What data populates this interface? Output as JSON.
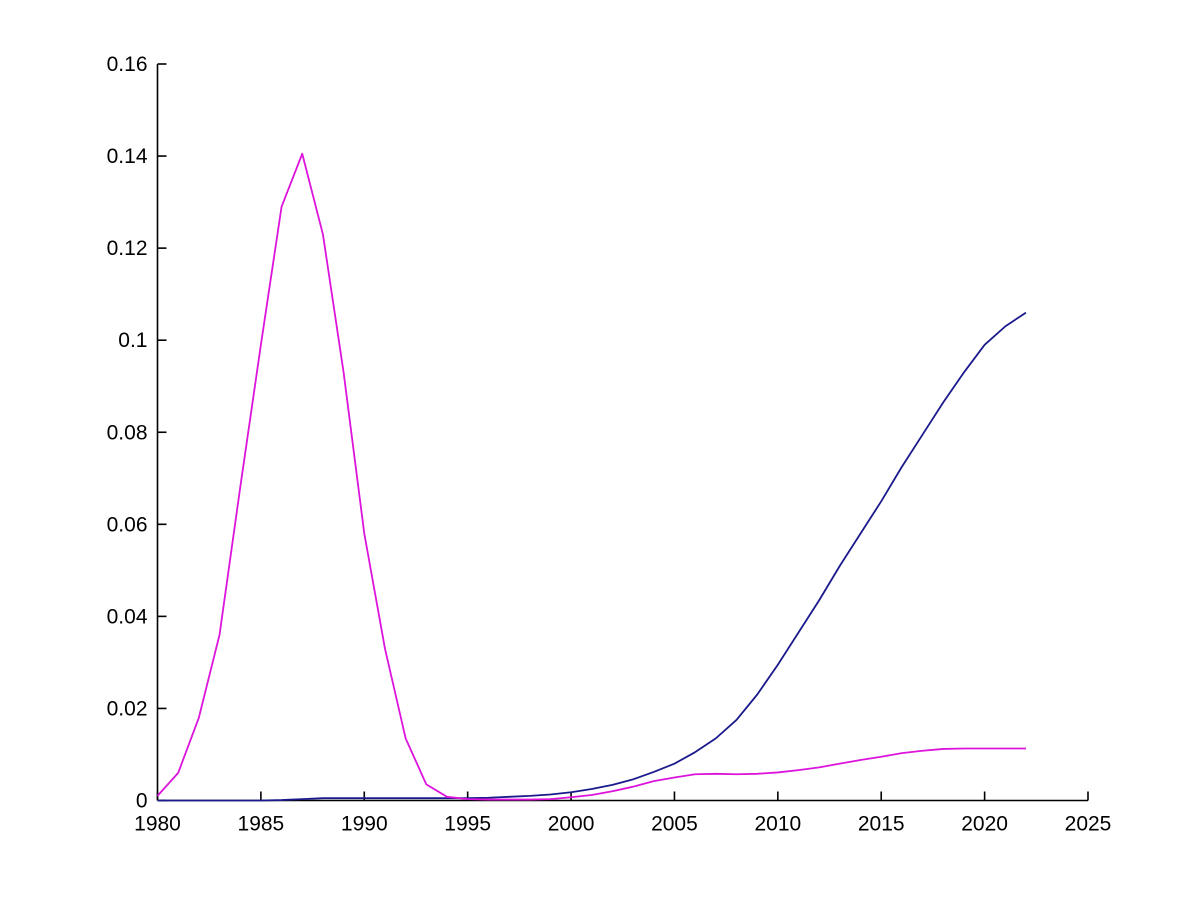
{
  "figure": {
    "background_color": "#ffffff",
    "title": "",
    "has_grid": false,
    "has_box": false,
    "has_legend": false
  },
  "chart_data": {
    "type": "line",
    "title": "",
    "xlabel": "",
    "ylabel": "",
    "xlim": [
      1980,
      2025
    ],
    "ylim": [
      0,
      0.16
    ],
    "xticks": [
      1980,
      1985,
      1990,
      1995,
      2000,
      2005,
      2010,
      2015,
      2020,
      2025
    ],
    "xtick_labels": [
      "1980",
      "1985",
      "1990",
      "1995",
      "2000",
      "2005",
      "2010",
      "2015",
      "2020",
      "2025"
    ],
    "yticks": [
      0,
      0.02,
      0.04,
      0.06,
      0.08,
      0.1,
      0.12,
      0.14,
      0.16
    ],
    "ytick_labels": [
      "0",
      "0.02",
      "0.04",
      "0.06",
      "0.08",
      "0.1",
      "0.12",
      "0.14",
      "0.16"
    ],
    "grid": false,
    "legend_position": "none",
    "axis_color": "#000000",
    "tick_dir": "in",
    "x": [
      1980,
      1981,
      1982,
      1983,
      1984,
      1985,
      1986,
      1987,
      1988,
      1989,
      1990,
      1991,
      1992,
      1993,
      1994,
      1995,
      1996,
      1997,
      1998,
      1999,
      2000,
      2001,
      2002,
      2003,
      2004,
      2005,
      2006,
      2007,
      2008,
      2009,
      2010,
      2011,
      2012,
      2013,
      2014,
      2015,
      2016,
      2017,
      2018,
      2019,
      2020,
      2021,
      2022
    ],
    "series": [
      {
        "name": "blue-series",
        "color": "#1A1A8C",
        "values": [
          0,
          0,
          0,
          0,
          0,
          0,
          0.0001,
          0.0003,
          0.0005,
          0.0005,
          0.0005,
          0.0005,
          0.0005,
          0.0005,
          0.0005,
          0.0005,
          0.0006,
          0.0008,
          0.001,
          0.0013,
          0.0018,
          0.0025,
          0.0034,
          0.0046,
          0.0062,
          0.008,
          0.0105,
          0.0135,
          0.0175,
          0.023,
          0.0295,
          0.0365,
          0.0435,
          0.051,
          0.058,
          0.065,
          0.0725,
          0.0795,
          0.0865,
          0.093,
          0.099,
          0.103,
          0.106
        ]
      },
      {
        "name": "magenta-series",
        "color": "#DC14DC",
        "values": [
          0.001,
          0.006,
          0.018,
          0.036,
          0.068,
          0.099,
          0.129,
          0.1405,
          0.123,
          0.093,
          0.058,
          0.033,
          0.0135,
          0.0035,
          0.0008,
          0.0003,
          0.0002,
          0.0002,
          0.0002,
          0.0003,
          0.0007,
          0.0012,
          0.002,
          0.003,
          0.0042,
          0.005,
          0.0057,
          0.0058,
          0.0057,
          0.0058,
          0.0061,
          0.0066,
          0.0072,
          0.008,
          0.0088,
          0.0095,
          0.0103,
          0.0108,
          0.0112,
          0.0113,
          0.0113,
          0.0113,
          0.0113
        ]
      }
    ]
  }
}
